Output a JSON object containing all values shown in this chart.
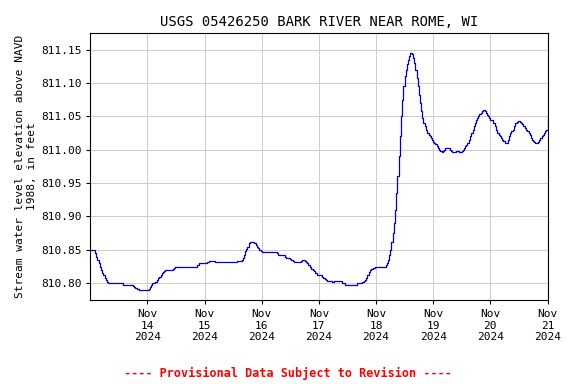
{
  "title": "USGS 05426250 BARK RIVER NEAR ROME, WI",
  "ylabel": "Stream water level elevation above NAVD\n1988, in feet",
  "footer": "---- Provisional Data Subject to Revision ----",
  "footer_color": "#ff0000",
  "line_color": "#0000cc",
  "background_color": "#ffffff",
  "grid_color": "#cccccc",
  "ylim": [
    810.775,
    811.175
  ],
  "yticks": [
    810.8,
    810.85,
    810.9,
    810.95,
    811.0,
    811.05,
    811.1,
    811.15
  ],
  "title_fontsize": 10,
  "ylabel_fontsize": 8,
  "tick_fontsize": 8,
  "xlim": [
    0,
    8
  ],
  "xtick_pos": [
    1,
    2,
    3,
    4,
    5,
    6,
    7,
    8
  ],
  "xtick_labels": [
    "Nov\n14\n2024",
    "Nov\n15\n2024",
    "Nov\n16\n2024",
    "Nov\n17\n2024",
    "Nov\n18\n2024",
    "Nov\n19\n2024",
    "Nov\n20\n2024",
    "Nov\n21\n2024"
  ],
  "data": [
    [
      0.0,
      810.85
    ],
    [
      0.04,
      810.85
    ],
    [
      0.08,
      810.845
    ],
    [
      0.1,
      810.84
    ],
    [
      0.12,
      810.835
    ],
    [
      0.15,
      810.83
    ],
    [
      0.17,
      810.825
    ],
    [
      0.19,
      810.82
    ],
    [
      0.21,
      810.815
    ],
    [
      0.23,
      810.812
    ],
    [
      0.25,
      810.808
    ],
    [
      0.27,
      810.805
    ],
    [
      0.29,
      810.802
    ],
    [
      0.31,
      810.8
    ],
    [
      0.33,
      810.8
    ],
    [
      0.35,
      810.8
    ],
    [
      0.37,
      810.8
    ],
    [
      0.4,
      810.8
    ],
    [
      0.42,
      810.8
    ],
    [
      0.44,
      810.8
    ],
    [
      0.46,
      810.8
    ],
    [
      0.48,
      810.8
    ],
    [
      0.5,
      810.8
    ],
    [
      0.52,
      810.8
    ],
    [
      0.54,
      810.8
    ],
    [
      0.56,
      810.8
    ],
    [
      0.58,
      810.798
    ],
    [
      0.6,
      810.798
    ],
    [
      0.62,
      810.798
    ],
    [
      0.65,
      810.798
    ],
    [
      0.67,
      810.798
    ],
    [
      0.69,
      810.798
    ],
    [
      0.71,
      810.797
    ],
    [
      0.73,
      810.797
    ],
    [
      0.75,
      810.796
    ],
    [
      0.77,
      810.795
    ],
    [
      0.79,
      810.793
    ],
    [
      0.81,
      810.792
    ],
    [
      0.83,
      810.791
    ],
    [
      0.85,
      810.79
    ],
    [
      0.87,
      810.79
    ],
    [
      0.88,
      810.79
    ],
    [
      0.92,
      810.79
    ],
    [
      0.96,
      810.79
    ],
    [
      1.0,
      810.79
    ],
    [
      1.02,
      810.792
    ],
    [
      1.04,
      810.795
    ],
    [
      1.06,
      810.798
    ],
    [
      1.08,
      810.8
    ],
    [
      1.1,
      810.8
    ],
    [
      1.12,
      810.8
    ],
    [
      1.14,
      810.802
    ],
    [
      1.17,
      810.805
    ],
    [
      1.19,
      810.808
    ],
    [
      1.21,
      810.81
    ],
    [
      1.23,
      810.812
    ],
    [
      1.25,
      810.815
    ],
    [
      1.27,
      810.817
    ],
    [
      1.29,
      810.818
    ],
    [
      1.31,
      810.82
    ],
    [
      1.33,
      810.82
    ],
    [
      1.35,
      810.82
    ],
    [
      1.37,
      810.82
    ],
    [
      1.39,
      810.82
    ],
    [
      1.42,
      810.82
    ],
    [
      1.44,
      810.822
    ],
    [
      1.46,
      810.823
    ],
    [
      1.48,
      810.824
    ],
    [
      1.5,
      810.825
    ],
    [
      1.52,
      810.825
    ],
    [
      1.54,
      810.825
    ],
    [
      1.56,
      810.825
    ],
    [
      1.58,
      810.825
    ],
    [
      1.6,
      810.825
    ],
    [
      1.62,
      810.825
    ],
    [
      1.64,
      810.825
    ],
    [
      1.67,
      810.825
    ],
    [
      1.69,
      810.825
    ],
    [
      1.71,
      810.825
    ],
    [
      1.73,
      810.825
    ],
    [
      1.75,
      810.825
    ],
    [
      1.77,
      810.825
    ],
    [
      1.79,
      810.825
    ],
    [
      1.81,
      810.825
    ],
    [
      1.83,
      810.825
    ],
    [
      1.85,
      810.825
    ],
    [
      1.87,
      810.828
    ],
    [
      1.9,
      810.83
    ],
    [
      1.92,
      810.83
    ],
    [
      1.94,
      810.83
    ],
    [
      1.96,
      810.83
    ],
    [
      1.98,
      810.83
    ],
    [
      2.0,
      810.83
    ],
    [
      2.04,
      810.832
    ],
    [
      2.08,
      810.833
    ],
    [
      2.1,
      810.833
    ],
    [
      2.12,
      810.833
    ],
    [
      2.15,
      810.833
    ],
    [
      2.17,
      810.833
    ],
    [
      2.19,
      810.832
    ],
    [
      2.21,
      810.832
    ],
    [
      2.23,
      810.832
    ],
    [
      2.25,
      810.832
    ],
    [
      2.27,
      810.832
    ],
    [
      2.29,
      810.832
    ],
    [
      2.31,
      810.832
    ],
    [
      2.33,
      810.832
    ],
    [
      2.35,
      810.832
    ],
    [
      2.37,
      810.832
    ],
    [
      2.4,
      810.832
    ],
    [
      2.42,
      810.832
    ],
    [
      2.44,
      810.832
    ],
    [
      2.46,
      810.832
    ],
    [
      2.48,
      810.832
    ],
    [
      2.5,
      810.832
    ],
    [
      2.52,
      810.832
    ],
    [
      2.54,
      810.832
    ],
    [
      2.56,
      810.833
    ],
    [
      2.58,
      810.833
    ],
    [
      2.6,
      810.833
    ],
    [
      2.63,
      810.833
    ],
    [
      2.65,
      810.835
    ],
    [
      2.67,
      810.838
    ],
    [
      2.69,
      810.843
    ],
    [
      2.71,
      810.848
    ],
    [
      2.73,
      810.852
    ],
    [
      2.75,
      810.855
    ],
    [
      2.77,
      810.86
    ],
    [
      2.79,
      810.862
    ],
    [
      2.81,
      810.862
    ],
    [
      2.83,
      810.862
    ],
    [
      2.85,
      810.862
    ],
    [
      2.87,
      810.86
    ],
    [
      2.9,
      810.858
    ],
    [
      2.92,
      810.855
    ],
    [
      2.94,
      810.853
    ],
    [
      2.96,
      810.85
    ],
    [
      2.98,
      810.848
    ],
    [
      3.0,
      810.847
    ],
    [
      3.04,
      810.847
    ],
    [
      3.08,
      810.847
    ],
    [
      3.1,
      810.847
    ],
    [
      3.12,
      810.847
    ],
    [
      3.15,
      810.847
    ],
    [
      3.17,
      810.847
    ],
    [
      3.19,
      810.847
    ],
    [
      3.21,
      810.847
    ],
    [
      3.23,
      810.847
    ],
    [
      3.25,
      810.847
    ],
    [
      3.27,
      810.845
    ],
    [
      3.29,
      810.843
    ],
    [
      3.31,
      810.842
    ],
    [
      3.33,
      810.842
    ],
    [
      3.35,
      810.843
    ],
    [
      3.37,
      810.843
    ],
    [
      3.38,
      810.843
    ],
    [
      3.4,
      810.84
    ],
    [
      3.42,
      810.838
    ],
    [
      3.44,
      810.838
    ],
    [
      3.46,
      810.838
    ],
    [
      3.48,
      810.838
    ],
    [
      3.5,
      810.837
    ],
    [
      3.52,
      810.835
    ],
    [
      3.54,
      810.833
    ],
    [
      3.56,
      810.832
    ],
    [
      3.58,
      810.832
    ],
    [
      3.6,
      810.832
    ],
    [
      3.63,
      810.832
    ],
    [
      3.65,
      810.832
    ],
    [
      3.67,
      810.832
    ],
    [
      3.69,
      810.833
    ],
    [
      3.71,
      810.835
    ],
    [
      3.73,
      810.835
    ],
    [
      3.75,
      810.833
    ],
    [
      3.77,
      810.832
    ],
    [
      3.79,
      810.83
    ],
    [
      3.81,
      810.828
    ],
    [
      3.83,
      810.827
    ],
    [
      3.85,
      810.825
    ],
    [
      3.87,
      810.822
    ],
    [
      3.9,
      810.82
    ],
    [
      3.92,
      810.818
    ],
    [
      3.94,
      810.815
    ],
    [
      3.96,
      810.813
    ],
    [
      3.98,
      810.812
    ],
    [
      4.0,
      810.812
    ],
    [
      4.02,
      810.812
    ],
    [
      4.04,
      810.812
    ],
    [
      4.06,
      810.81
    ],
    [
      4.08,
      810.808
    ],
    [
      4.1,
      810.806
    ],
    [
      4.12,
      810.805
    ],
    [
      4.14,
      810.804
    ],
    [
      4.17,
      810.804
    ],
    [
      4.19,
      810.803
    ],
    [
      4.21,
      810.803
    ],
    [
      4.23,
      810.802
    ],
    [
      4.25,
      810.802
    ],
    [
      4.27,
      810.803
    ],
    [
      4.29,
      810.803
    ],
    [
      4.31,
      810.803
    ],
    [
      4.33,
      810.803
    ],
    [
      4.35,
      810.803
    ],
    [
      4.37,
      810.803
    ],
    [
      4.4,
      810.8
    ],
    [
      4.42,
      810.8
    ],
    [
      4.44,
      810.8
    ],
    [
      4.46,
      810.798
    ],
    [
      4.48,
      810.798
    ],
    [
      4.5,
      810.797
    ],
    [
      4.52,
      810.797
    ],
    [
      4.54,
      810.797
    ],
    [
      4.56,
      810.797
    ],
    [
      4.58,
      810.797
    ],
    [
      4.6,
      810.797
    ],
    [
      4.63,
      810.797
    ],
    [
      4.65,
      810.798
    ],
    [
      4.67,
      810.8
    ],
    [
      4.69,
      810.8
    ],
    [
      4.71,
      810.8
    ],
    [
      4.73,
      810.8
    ],
    [
      4.75,
      810.802
    ],
    [
      4.77,
      810.802
    ],
    [
      4.79,
      810.803
    ],
    [
      4.81,
      810.805
    ],
    [
      4.83,
      810.808
    ],
    [
      4.85,
      810.812
    ],
    [
      4.87,
      810.815
    ],
    [
      4.88,
      810.817
    ],
    [
      4.9,
      810.82
    ],
    [
      4.92,
      810.822
    ],
    [
      4.94,
      810.823
    ],
    [
      4.96,
      810.823
    ],
    [
      4.98,
      810.825
    ],
    [
      5.0,
      810.825
    ],
    [
      5.04,
      810.825
    ],
    [
      5.08,
      810.825
    ],
    [
      5.1,
      810.825
    ],
    [
      5.12,
      810.825
    ],
    [
      5.15,
      810.825
    ],
    [
      5.17,
      810.828
    ],
    [
      5.19,
      810.83
    ],
    [
      5.21,
      810.835
    ],
    [
      5.23,
      810.842
    ],
    [
      5.25,
      810.85
    ],
    [
      5.27,
      810.862
    ],
    [
      5.29,
      810.875
    ],
    [
      5.31,
      810.89
    ],
    [
      5.33,
      810.91
    ],
    [
      5.35,
      810.935
    ],
    [
      5.37,
      810.96
    ],
    [
      5.4,
      810.99
    ],
    [
      5.42,
      811.02
    ],
    [
      5.44,
      811.05
    ],
    [
      5.46,
      811.075
    ],
    [
      5.48,
      811.095
    ],
    [
      5.5,
      811.11
    ],
    [
      5.52,
      811.12
    ],
    [
      5.54,
      811.128
    ],
    [
      5.56,
      811.135
    ],
    [
      5.58,
      811.14
    ],
    [
      5.6,
      811.145
    ],
    [
      5.63,
      811.143
    ],
    [
      5.65,
      811.138
    ],
    [
      5.67,
      811.13
    ],
    [
      5.69,
      811.12
    ],
    [
      5.71,
      811.108
    ],
    [
      5.73,
      811.095
    ],
    [
      5.75,
      811.082
    ],
    [
      5.77,
      811.07
    ],
    [
      5.79,
      811.058
    ],
    [
      5.81,
      811.048
    ],
    [
      5.83,
      811.04
    ],
    [
      5.85,
      811.035
    ],
    [
      5.87,
      811.03
    ],
    [
      5.9,
      811.025
    ],
    [
      5.92,
      811.022
    ],
    [
      5.94,
      811.02
    ],
    [
      5.96,
      811.018
    ],
    [
      5.98,
      811.015
    ],
    [
      6.0,
      811.012
    ],
    [
      6.02,
      811.01
    ],
    [
      6.04,
      811.008
    ],
    [
      6.06,
      811.005
    ],
    [
      6.08,
      811.003
    ],
    [
      6.1,
      811.0
    ],
    [
      6.12,
      810.998
    ],
    [
      6.15,
      810.997
    ],
    [
      6.17,
      810.998
    ],
    [
      6.19,
      811.0
    ],
    [
      6.21,
      811.002
    ],
    [
      6.23,
      811.003
    ],
    [
      6.25,
      811.003
    ],
    [
      6.27,
      811.002
    ],
    [
      6.29,
      811.0
    ],
    [
      6.31,
      810.998
    ],
    [
      6.33,
      810.997
    ],
    [
      6.35,
      810.996
    ],
    [
      6.37,
      810.997
    ],
    [
      6.4,
      810.998
    ],
    [
      6.42,
      810.998
    ],
    [
      6.44,
      810.998
    ],
    [
      6.46,
      810.997
    ],
    [
      6.48,
      810.997
    ],
    [
      6.5,
      810.998
    ],
    [
      6.52,
      811.0
    ],
    [
      6.54,
      811.003
    ],
    [
      6.56,
      811.005
    ],
    [
      6.58,
      811.007
    ],
    [
      6.6,
      811.01
    ],
    [
      6.63,
      811.015
    ],
    [
      6.65,
      811.02
    ],
    [
      6.67,
      811.025
    ],
    [
      6.69,
      811.03
    ],
    [
      6.71,
      811.035
    ],
    [
      6.73,
      811.04
    ],
    [
      6.75,
      811.045
    ],
    [
      6.77,
      811.048
    ],
    [
      6.79,
      811.05
    ],
    [
      6.81,
      811.053
    ],
    [
      6.83,
      811.055
    ],
    [
      6.85,
      811.058
    ],
    [
      6.87,
      811.06
    ],
    [
      6.88,
      811.06
    ],
    [
      6.9,
      811.058
    ],
    [
      6.92,
      811.055
    ],
    [
      6.94,
      811.052
    ],
    [
      6.96,
      811.05
    ],
    [
      6.98,
      811.048
    ],
    [
      7.0,
      811.045
    ],
    [
      7.04,
      811.04
    ],
    [
      7.08,
      811.035
    ],
    [
      7.1,
      811.03
    ],
    [
      7.12,
      811.025
    ],
    [
      7.15,
      811.022
    ],
    [
      7.17,
      811.02
    ],
    [
      7.19,
      811.018
    ],
    [
      7.21,
      811.015
    ],
    [
      7.23,
      811.013
    ],
    [
      7.25,
      811.01
    ],
    [
      7.27,
      811.01
    ],
    [
      7.29,
      811.01
    ],
    [
      7.31,
      811.015
    ],
    [
      7.33,
      811.02
    ],
    [
      7.35,
      811.025
    ],
    [
      7.37,
      811.028
    ],
    [
      7.4,
      811.03
    ],
    [
      7.42,
      811.035
    ],
    [
      7.44,
      811.04
    ],
    [
      7.46,
      811.042
    ],
    [
      7.48,
      811.043
    ],
    [
      7.5,
      811.043
    ],
    [
      7.52,
      811.042
    ],
    [
      7.54,
      811.04
    ],
    [
      7.56,
      811.038
    ],
    [
      7.58,
      811.035
    ],
    [
      7.6,
      811.033
    ],
    [
      7.63,
      811.03
    ],
    [
      7.65,
      811.028
    ],
    [
      7.67,
      811.025
    ],
    [
      7.69,
      811.022
    ],
    [
      7.71,
      811.018
    ],
    [
      7.73,
      811.015
    ],
    [
      7.75,
      811.013
    ],
    [
      7.77,
      811.012
    ],
    [
      7.79,
      811.01
    ],
    [
      7.81,
      811.01
    ],
    [
      7.83,
      811.012
    ],
    [
      7.85,
      811.015
    ],
    [
      7.87,
      811.018
    ],
    [
      7.9,
      811.02
    ],
    [
      7.92,
      811.022
    ],
    [
      7.94,
      811.025
    ],
    [
      7.96,
      811.028
    ],
    [
      7.98,
      811.03
    ],
    [
      8.0,
      811.05
    ]
  ]
}
